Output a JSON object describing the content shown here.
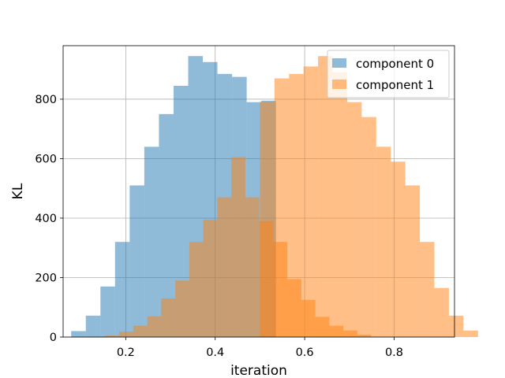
{
  "chart_data": {
    "type": "histogram",
    "xlabel": "iteration",
    "ylabel": "KL",
    "xlim": [
      0.06,
      0.935
    ],
    "ylim": [
      0,
      980
    ],
    "xticks": [
      0.2,
      0.4,
      0.6,
      0.8
    ],
    "xtick_labels": [
      "0.2",
      "0.4",
      "0.6",
      "0.8"
    ],
    "yticks": [
      0,
      200,
      400,
      600,
      800
    ],
    "ytick_labels": [
      "0",
      "200",
      "400",
      "600",
      "800"
    ],
    "grid": true,
    "legend_position": "upper right",
    "series": [
      {
        "name": "component 0",
        "color": "#1f77b4",
        "opacity": 0.5,
        "bin_start": 0.078,
        "bin_width": 0.0327,
        "counts": [
          20,
          72,
          170,
          320,
          510,
          640,
          750,
          845,
          945,
          925,
          885,
          875,
          790,
          795
        ]
      },
      {
        "name": "component 1",
        "color": "#ff7f0e",
        "opacity": 0.5,
        "bin_start": 0.123,
        "bin_width": 0.0313,
        "counts": [
          2,
          5,
          18,
          38,
          70,
          130,
          190,
          320,
          395,
          470,
          605,
          470,
          390,
          320,
          195,
          125,
          68,
          38,
          22,
          8
        ]
      },
      {
        "name": "component 1",
        "color": "#ff7f0e",
        "opacity": 0.5,
        "bin_start": 0.5,
        "bin_width": 0.0325,
        "counts": [
          792,
          870,
          885,
          910,
          945,
          890,
          790,
          740,
          640,
          590,
          510,
          320,
          165,
          72,
          22
        ]
      }
    ]
  }
}
